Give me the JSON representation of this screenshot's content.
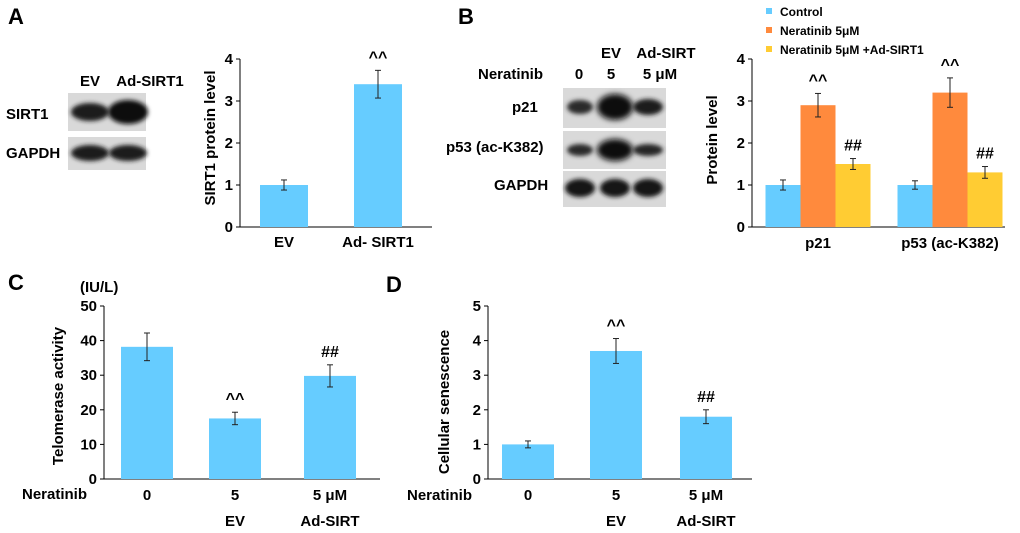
{
  "colors": {
    "bar": "#66CCFF",
    "control": "#66CCFF",
    "neratinib": "#FF8A3D",
    "neratinib_sirt": "#FFCC33",
    "blot_band": "#1a1a1a",
    "blot_bg": "#d6d6d6"
  },
  "panels": {
    "A": "A",
    "B": "B",
    "C": "C",
    "D": "D"
  },
  "blotA": {
    "lanes": [
      "EV",
      "Ad-SIRT1"
    ],
    "rows": [
      "SIRT1",
      "GAPDH"
    ]
  },
  "blotB": {
    "treatment_label": "Neratinib",
    "top_labels": [
      "EV",
      "Ad-SIRT"
    ],
    "doses": [
      "0",
      "5",
      "5 μM"
    ],
    "rows": [
      "p21",
      "p53 (ac-K382)",
      "GAPDH"
    ]
  },
  "chart_data": [
    {
      "id": "A",
      "type": "bar",
      "categories": [
        "EV",
        "Ad- SIRT1"
      ],
      "values": [
        1.0,
        3.4
      ],
      "errors": [
        0.12,
        0.33
      ],
      "annotations": [
        "",
        "^^"
      ],
      "ylabel": "SIRT1 protein level",
      "ylim": [
        0,
        4
      ],
      "yticks": [
        "0",
        "1",
        "2",
        "3",
        "4"
      ]
    },
    {
      "id": "B",
      "type": "bar",
      "categories": [
        "p21",
        "p53 (ac-K382)"
      ],
      "series": [
        {
          "name": "Control",
          "values": [
            1.0,
            1.0
          ],
          "errors": [
            0.12,
            0.1
          ],
          "annotations": [
            "",
            ""
          ]
        },
        {
          "name": "Neratinib  5μM",
          "values": [
            2.9,
            3.2
          ],
          "errors": [
            0.28,
            0.35
          ],
          "annotations": [
            "^^",
            "^^"
          ]
        },
        {
          "name": "Neratinib  5μM +Ad-SIRT1",
          "values": [
            1.5,
            1.3
          ],
          "errors": [
            0.13,
            0.14
          ],
          "annotations": [
            "##",
            "##"
          ]
        }
      ],
      "ylabel": "Protein level",
      "ylim": [
        0,
        4
      ],
      "yticks": [
        "0",
        "1",
        "2",
        "3",
        "4"
      ],
      "legend": "top"
    },
    {
      "id": "C",
      "type": "bar",
      "treatment_label": "Neratinib",
      "categories": [
        "0",
        "5",
        "5 μM"
      ],
      "sub_labels": [
        "",
        "EV",
        "Ad-SIRT"
      ],
      "values": [
        38.2,
        17.5,
        29.8
      ],
      "errors": [
        4.0,
        1.8,
        3.2
      ],
      "annotations": [
        "",
        "^^",
        "##"
      ],
      "ylabel": "Telomerase activity",
      "unit": "(IU/L)",
      "ylim": [
        0,
        50
      ],
      "yticks": [
        "0",
        "10",
        "20",
        "30",
        "40",
        "50"
      ]
    },
    {
      "id": "D",
      "type": "bar",
      "treatment_label": "Neratinib",
      "categories": [
        "0",
        "5",
        "5 μM"
      ],
      "sub_labels": [
        "",
        "EV",
        "Ad-SIRT"
      ],
      "values": [
        1.0,
        3.7,
        1.8
      ],
      "errors": [
        0.1,
        0.36,
        0.2
      ],
      "annotations": [
        "",
        "^^",
        "##"
      ],
      "ylabel": "Cellular senescence",
      "ylim": [
        0,
        5
      ],
      "yticks": [
        "0",
        "1",
        "2",
        "3",
        "4",
        "5"
      ]
    }
  ]
}
